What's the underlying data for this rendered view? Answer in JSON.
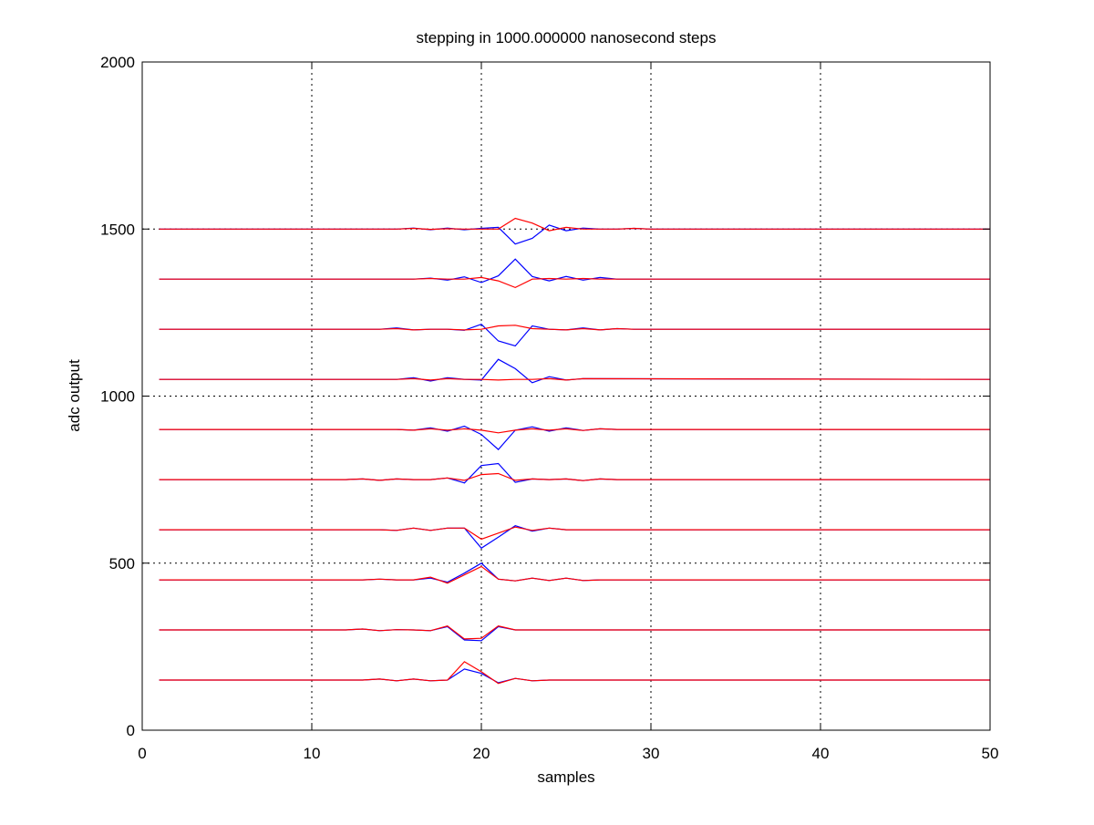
{
  "chart_data": {
    "type": "line",
    "title": "stepping in 1000.000000 nanosecond steps",
    "xlabel": "samples",
    "ylabel": "adc output",
    "xlim": [
      0,
      50
    ],
    "ylim": [
      0,
      2000
    ],
    "xticks": [
      0,
      10,
      20,
      30,
      40,
      50
    ],
    "yticks": [
      0,
      500,
      1000,
      1500,
      2000
    ],
    "grid": true,
    "grid_style": "dotted",
    "series_colors": [
      "#0000ff",
      "#ff0000"
    ],
    "baselines": [
      150,
      300,
      450,
      600,
      750,
      900,
      1050,
      1200,
      1350,
      1500
    ],
    "traces": [
      {
        "baseline": 150,
        "blue": [
          [
            1,
            150
          ],
          [
            13,
            150
          ],
          [
            14,
            153
          ],
          [
            15,
            148
          ],
          [
            16,
            153
          ],
          [
            17,
            148
          ],
          [
            18,
            150
          ],
          [
            19,
            183
          ],
          [
            20,
            170
          ],
          [
            21,
            142
          ],
          [
            22,
            155
          ],
          [
            23,
            148
          ],
          [
            24,
            150
          ],
          [
            50,
            150
          ]
        ],
        "red": [
          [
            1,
            150
          ],
          [
            13,
            150
          ],
          [
            14,
            153
          ],
          [
            15,
            148
          ],
          [
            16,
            153
          ],
          [
            17,
            148
          ],
          [
            18,
            150
          ],
          [
            19,
            205
          ],
          [
            20,
            175
          ],
          [
            21,
            140
          ],
          [
            22,
            155
          ],
          [
            23,
            148
          ],
          [
            24,
            150
          ],
          [
            50,
            150
          ]
        ]
      },
      {
        "baseline": 300,
        "blue": [
          [
            1,
            300
          ],
          [
            12,
            300
          ],
          [
            13,
            303
          ],
          [
            14,
            298
          ],
          [
            15,
            301
          ],
          [
            16,
            300
          ],
          [
            17,
            298
          ],
          [
            18,
            310
          ],
          [
            19,
            270
          ],
          [
            20,
            268
          ],
          [
            21,
            310
          ],
          [
            22,
            300
          ],
          [
            23,
            300
          ],
          [
            50,
            300
          ]
        ],
        "red": [
          [
            1,
            300
          ],
          [
            12,
            300
          ],
          [
            13,
            303
          ],
          [
            14,
            298
          ],
          [
            15,
            301
          ],
          [
            16,
            300
          ],
          [
            17,
            298
          ],
          [
            18,
            312
          ],
          [
            19,
            273
          ],
          [
            20,
            275
          ],
          [
            21,
            312
          ],
          [
            22,
            300
          ],
          [
            23,
            300
          ],
          [
            50,
            300
          ]
        ]
      },
      {
        "baseline": 450,
        "blue": [
          [
            1,
            450
          ],
          [
            13,
            450
          ],
          [
            14,
            452
          ],
          [
            15,
            450
          ],
          [
            16,
            450
          ],
          [
            17,
            455
          ],
          [
            18,
            443
          ],
          [
            19,
            470
          ],
          [
            20,
            500
          ],
          [
            21,
            452
          ],
          [
            22,
            447
          ],
          [
            23,
            455
          ],
          [
            24,
            448
          ],
          [
            25,
            455
          ],
          [
            26,
            448
          ],
          [
            27,
            450
          ],
          [
            50,
            450
          ]
        ],
        "red": [
          [
            1,
            450
          ],
          [
            13,
            450
          ],
          [
            14,
            452
          ],
          [
            15,
            450
          ],
          [
            16,
            450
          ],
          [
            17,
            458
          ],
          [
            18,
            440
          ],
          [
            19,
            465
          ],
          [
            20,
            490
          ],
          [
            21,
            452
          ],
          [
            22,
            447
          ],
          [
            23,
            455
          ],
          [
            24,
            448
          ],
          [
            25,
            455
          ],
          [
            26,
            448
          ],
          [
            27,
            450
          ],
          [
            50,
            450
          ]
        ]
      },
      {
        "baseline": 600,
        "blue": [
          [
            1,
            600
          ],
          [
            14,
            600
          ],
          [
            15,
            598
          ],
          [
            16,
            605
          ],
          [
            17,
            598
          ],
          [
            18,
            605
          ],
          [
            19,
            605
          ],
          [
            20,
            545
          ],
          [
            21,
            578
          ],
          [
            22,
            612
          ],
          [
            23,
            596
          ],
          [
            24,
            605
          ],
          [
            25,
            600
          ],
          [
            50,
            600
          ]
        ],
        "red": [
          [
            1,
            600
          ],
          [
            14,
            600
          ],
          [
            15,
            598
          ],
          [
            16,
            605
          ],
          [
            17,
            598
          ],
          [
            18,
            605
          ],
          [
            19,
            605
          ],
          [
            20,
            572
          ],
          [
            21,
            590
          ],
          [
            22,
            608
          ],
          [
            23,
            598
          ],
          [
            24,
            605
          ],
          [
            25,
            600
          ],
          [
            50,
            600
          ]
        ]
      },
      {
        "baseline": 750,
        "blue": [
          [
            1,
            750
          ],
          [
            12,
            750
          ],
          [
            13,
            752
          ],
          [
            14,
            748
          ],
          [
            15,
            752
          ],
          [
            16,
            750
          ],
          [
            17,
            750
          ],
          [
            18,
            755
          ],
          [
            19,
            740
          ],
          [
            20,
            792
          ],
          [
            21,
            798
          ],
          [
            22,
            742
          ],
          [
            23,
            752
          ],
          [
            24,
            750
          ],
          [
            25,
            752
          ],
          [
            26,
            747
          ],
          [
            27,
            752
          ],
          [
            28,
            750
          ],
          [
            50,
            750
          ]
        ],
        "red": [
          [
            1,
            750
          ],
          [
            12,
            750
          ],
          [
            13,
            752
          ],
          [
            14,
            748
          ],
          [
            15,
            752
          ],
          [
            16,
            750
          ],
          [
            17,
            750
          ],
          [
            18,
            755
          ],
          [
            19,
            748
          ],
          [
            20,
            765
          ],
          [
            21,
            768
          ],
          [
            22,
            748
          ],
          [
            23,
            752
          ],
          [
            24,
            750
          ],
          [
            25,
            752
          ],
          [
            26,
            747
          ],
          [
            27,
            752
          ],
          [
            28,
            750
          ],
          [
            50,
            750
          ]
        ]
      },
      {
        "baseline": 900,
        "blue": [
          [
            1,
            900
          ],
          [
            15,
            900
          ],
          [
            16,
            898
          ],
          [
            17,
            905
          ],
          [
            18,
            895
          ],
          [
            19,
            910
          ],
          [
            20,
            885
          ],
          [
            21,
            840
          ],
          [
            22,
            898
          ],
          [
            23,
            908
          ],
          [
            24,
            895
          ],
          [
            25,
            905
          ],
          [
            26,
            897
          ],
          [
            27,
            902
          ],
          [
            28,
            900
          ],
          [
            50,
            900
          ]
        ],
        "red": [
          [
            1,
            900
          ],
          [
            15,
            900
          ],
          [
            16,
            898
          ],
          [
            17,
            902
          ],
          [
            18,
            898
          ],
          [
            19,
            902
          ],
          [
            20,
            898
          ],
          [
            21,
            890
          ],
          [
            22,
            898
          ],
          [
            23,
            902
          ],
          [
            24,
            898
          ],
          [
            25,
            902
          ],
          [
            26,
            897
          ],
          [
            27,
            902
          ],
          [
            28,
            900
          ],
          [
            50,
            900
          ]
        ]
      },
      {
        "baseline": 1050,
        "blue": [
          [
            1,
            1050
          ],
          [
            15,
            1050
          ],
          [
            16,
            1055
          ],
          [
            17,
            1045
          ],
          [
            18,
            1055
          ],
          [
            19,
            1050
          ],
          [
            20,
            1048
          ],
          [
            21,
            1110
          ],
          [
            22,
            1082
          ],
          [
            23,
            1040
          ],
          [
            24,
            1058
          ],
          [
            25,
            1048
          ],
          [
            26,
            1052
          ],
          [
            50,
            1050
          ]
        ],
        "red": [
          [
            1,
            1050
          ],
          [
            15,
            1050
          ],
          [
            16,
            1052
          ],
          [
            17,
            1048
          ],
          [
            18,
            1052
          ],
          [
            19,
            1050
          ],
          [
            20,
            1050
          ],
          [
            21,
            1048
          ],
          [
            22,
            1050
          ],
          [
            23,
            1050
          ],
          [
            24,
            1052
          ],
          [
            25,
            1048
          ],
          [
            26,
            1052
          ],
          [
            50,
            1050
          ]
        ]
      },
      {
        "baseline": 1200,
        "blue": [
          [
            1,
            1200
          ],
          [
            14,
            1200
          ],
          [
            15,
            1204
          ],
          [
            16,
            1198
          ],
          [
            17,
            1200
          ],
          [
            18,
            1200
          ],
          [
            19,
            1197
          ],
          [
            20,
            1215
          ],
          [
            21,
            1165
          ],
          [
            22,
            1150
          ],
          [
            23,
            1210
          ],
          [
            24,
            1200
          ],
          [
            25,
            1198
          ],
          [
            26,
            1204
          ],
          [
            27,
            1198
          ],
          [
            28,
            1202
          ],
          [
            29,
            1200
          ],
          [
            50,
            1200
          ]
        ],
        "red": [
          [
            1,
            1200
          ],
          [
            14,
            1200
          ],
          [
            15,
            1202
          ],
          [
            16,
            1198
          ],
          [
            17,
            1200
          ],
          [
            18,
            1200
          ],
          [
            19,
            1198
          ],
          [
            20,
            1200
          ],
          [
            21,
            1210
          ],
          [
            22,
            1212
          ],
          [
            23,
            1202
          ],
          [
            24,
            1200
          ],
          [
            25,
            1198
          ],
          [
            26,
            1202
          ],
          [
            27,
            1198
          ],
          [
            28,
            1202
          ],
          [
            29,
            1200
          ],
          [
            50,
            1200
          ]
        ]
      },
      {
        "baseline": 1350,
        "blue": [
          [
            1,
            1350
          ],
          [
            15,
            1350
          ],
          [
            16,
            1350
          ],
          [
            17,
            1353
          ],
          [
            18,
            1347
          ],
          [
            19,
            1357
          ],
          [
            20,
            1340
          ],
          [
            21,
            1360
          ],
          [
            22,
            1410
          ],
          [
            23,
            1358
          ],
          [
            24,
            1345
          ],
          [
            25,
            1358
          ],
          [
            26,
            1347
          ],
          [
            27,
            1355
          ],
          [
            28,
            1350
          ],
          [
            50,
            1350
          ]
        ],
        "red": [
          [
            1,
            1350
          ],
          [
            15,
            1350
          ],
          [
            16,
            1350
          ],
          [
            17,
            1352
          ],
          [
            18,
            1350
          ],
          [
            19,
            1350
          ],
          [
            20,
            1355
          ],
          [
            21,
            1345
          ],
          [
            22,
            1325
          ],
          [
            23,
            1350
          ],
          [
            24,
            1352
          ],
          [
            25,
            1350
          ],
          [
            26,
            1352
          ],
          [
            27,
            1350
          ],
          [
            50,
            1350
          ]
        ]
      },
      {
        "baseline": 1500,
        "blue": [
          [
            1,
            1500
          ],
          [
            15,
            1500
          ],
          [
            16,
            1503
          ],
          [
            17,
            1498
          ],
          [
            18,
            1503
          ],
          [
            19,
            1498
          ],
          [
            20,
            1502
          ],
          [
            21,
            1505
          ],
          [
            22,
            1455
          ],
          [
            23,
            1472
          ],
          [
            24,
            1512
          ],
          [
            25,
            1495
          ],
          [
            26,
            1503
          ],
          [
            27,
            1500
          ],
          [
            28,
            1500
          ],
          [
            29,
            1502
          ],
          [
            30,
            1500
          ],
          [
            50,
            1500
          ]
        ],
        "red": [
          [
            1,
            1500
          ],
          [
            15,
            1500
          ],
          [
            16,
            1502
          ],
          [
            17,
            1499
          ],
          [
            18,
            1501
          ],
          [
            19,
            1500
          ],
          [
            20,
            1500
          ],
          [
            21,
            1500
          ],
          [
            22,
            1532
          ],
          [
            23,
            1518
          ],
          [
            24,
            1495
          ],
          [
            25,
            1505
          ],
          [
            26,
            1500
          ],
          [
            27,
            1500
          ],
          [
            28,
            1500
          ],
          [
            29,
            1502
          ],
          [
            30,
            1500
          ],
          [
            50,
            1500
          ]
        ]
      }
    ]
  }
}
